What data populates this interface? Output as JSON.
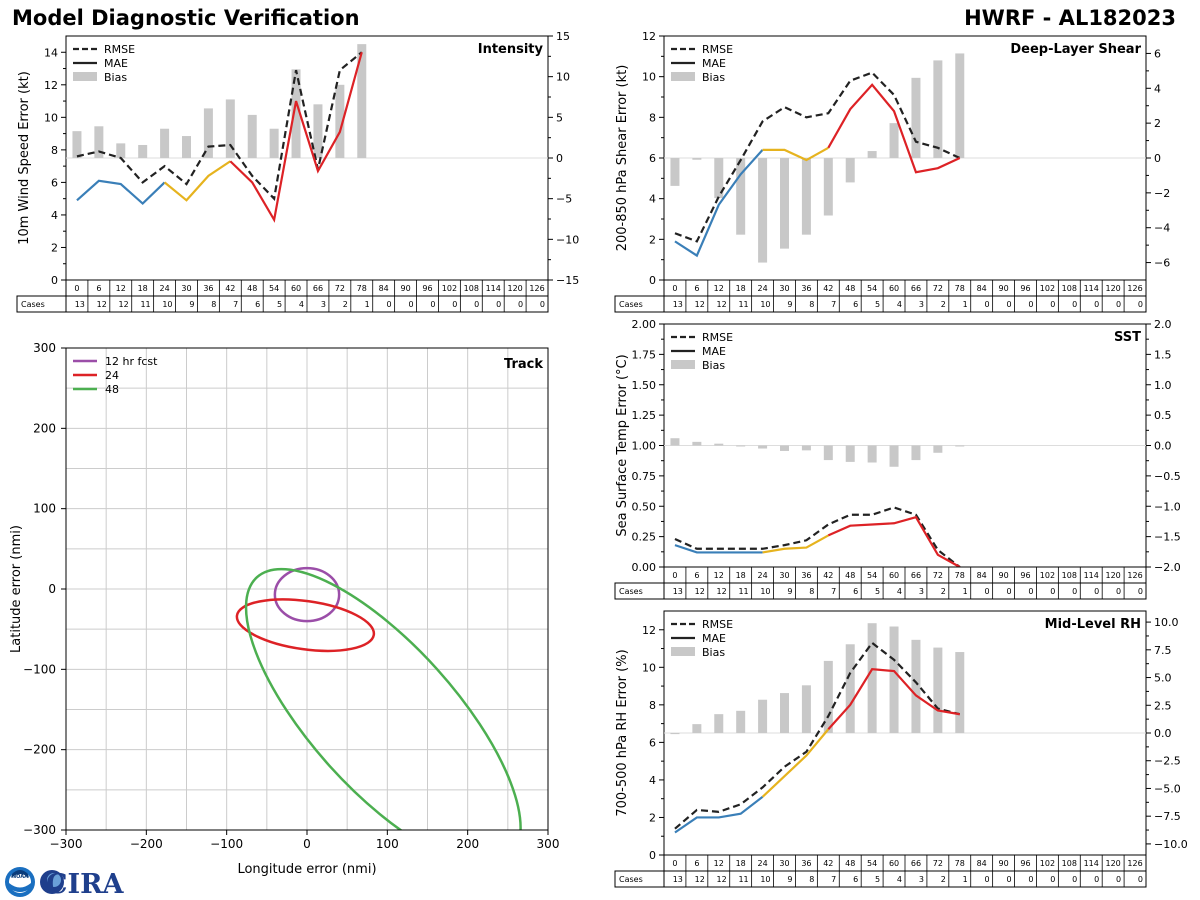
{
  "header": {
    "title_left": "Model Diagnostic Verification",
    "title_right": "HWRF - AL182023"
  },
  "logos": {
    "noaa_seal_text": "NOAA",
    "cira_text": "CIRA"
  },
  "colors": {
    "rmse": "#222222",
    "mae_early": "#3a7fb8",
    "mae_mid": "#e6b31e",
    "mae_late": "#dd2226",
    "bias": "#c8c8c8",
    "track_12": "#9b4ea8",
    "track_24": "#dd2226",
    "track_48": "#4caf50",
    "grid": "#cccccc"
  },
  "cases_row": {
    "label": "Cases",
    "hours": [
      "0",
      "6",
      "12",
      "18",
      "24",
      "30",
      "36",
      "42",
      "48",
      "54",
      "60",
      "66",
      "72",
      "78",
      "84",
      "90",
      "96",
      "102",
      "108",
      "114",
      "120",
      "126"
    ],
    "counts": [
      "13",
      "12",
      "12",
      "11",
      "10",
      "9",
      "8",
      "7",
      "6",
      "5",
      "4",
      "3",
      "2",
      "1",
      "0",
      "0",
      "0",
      "0",
      "0",
      "0",
      "0",
      "0"
    ]
  },
  "chart_data": [
    {
      "id": "intensity",
      "type": "line",
      "title": "Intensity",
      "ylabel": "10m Wind Speed Error (kt)",
      "ylim": [
        0,
        15
      ],
      "yticks": [
        "0",
        "2",
        "4",
        "6",
        "8",
        "10",
        "12",
        "14"
      ],
      "y2lim": [
        -15,
        15
      ],
      "y2ticks": [
        "−15",
        "−10",
        "−5",
        "0",
        "5",
        "10",
        "15"
      ],
      "legend": [
        "RMSE",
        "MAE",
        "Bias"
      ],
      "x": [
        0,
        6,
        12,
        18,
        24,
        30,
        36,
        42,
        48,
        54,
        60,
        66,
        72,
        78
      ],
      "rmse": [
        7.6,
        7.9,
        7.5,
        6.0,
        7.0,
        5.9,
        8.2,
        8.3,
        6.4,
        5.0,
        12.9,
        6.8,
        12.9,
        14.0
      ],
      "mae": [
        4.9,
        6.1,
        5.9,
        4.7,
        6.0,
        4.9,
        6.4,
        7.3,
        6.0,
        3.7,
        11.0,
        6.7,
        9.1,
        14.0
      ],
      "bias": [
        3.3,
        3.9,
        1.8,
        1.6,
        3.6,
        2.7,
        6.1,
        7.2,
        5.3,
        3.6,
        10.9,
        6.6,
        9.0,
        14.0
      ]
    },
    {
      "id": "shear",
      "type": "line",
      "title": "Deep-Layer Shear",
      "ylabel": "200-850 hPa Shear Error (kt)",
      "ylim": [
        0,
        12
      ],
      "yticks": [
        "0",
        "2",
        "4",
        "6",
        "8",
        "10",
        "12"
      ],
      "y2lim": [
        -7,
        7
      ],
      "y2ticks": [
        "−6",
        "−4",
        "−2",
        "0",
        "2",
        "4",
        "6"
      ],
      "legend": [
        "RMSE",
        "MAE",
        "Bias"
      ],
      "x": [
        0,
        6,
        12,
        18,
        24,
        30,
        36,
        42,
        48,
        54,
        60,
        66,
        72,
        78
      ],
      "rmse": [
        2.3,
        1.9,
        4.1,
        5.9,
        7.8,
        8.5,
        8.0,
        8.2,
        9.8,
        10.2,
        9.1,
        6.8,
        6.5,
        6.0
      ],
      "mae": [
        1.9,
        1.2,
        3.7,
        5.2,
        6.4,
        6.4,
        5.9,
        6.5,
        8.4,
        9.6,
        8.3,
        5.3,
        5.5,
        6.0
      ],
      "bias": [
        -1.6,
        -0.1,
        -2.3,
        -4.4,
        -6.0,
        -5.2,
        -4.4,
        -3.3,
        -1.4,
        0.4,
        2.0,
        4.6,
        5.6,
        6.0
      ]
    },
    {
      "id": "sst",
      "type": "line",
      "title": "SST",
      "ylabel": "Sea Surface Temp Error (°C)",
      "ylim": [
        0,
        2
      ],
      "yticks": [
        "0.00",
        "0.25",
        "0.50",
        "0.75",
        "1.00",
        "1.25",
        "1.50",
        "1.75",
        "2.00"
      ],
      "y2lim": [
        -2,
        2
      ],
      "y2ticks": [
        "−2.0",
        "−1.5",
        "−1.0",
        "−0.5",
        "0.0",
        "0.5",
        "1.0",
        "1.5",
        "2.0"
      ],
      "legend": [
        "RMSE",
        "MAE",
        "Bias"
      ],
      "x": [
        0,
        6,
        12,
        18,
        24,
        30,
        36,
        42,
        48,
        54,
        60,
        66,
        72,
        78
      ],
      "rmse": [
        0.23,
        0.15,
        0.15,
        0.15,
        0.15,
        0.18,
        0.22,
        0.35,
        0.43,
        0.43,
        0.49,
        0.43,
        0.14,
        0.0
      ],
      "mae": [
        0.18,
        0.12,
        0.12,
        0.12,
        0.12,
        0.15,
        0.16,
        0.26,
        0.34,
        0.35,
        0.36,
        0.41,
        0.1,
        0.0
      ],
      "bias": [
        0.12,
        0.06,
        0.03,
        -0.01,
        -0.05,
        -0.09,
        -0.08,
        -0.24,
        -0.27,
        -0.28,
        -0.35,
        -0.24,
        -0.12,
        0.0
      ]
    },
    {
      "id": "rh",
      "type": "line",
      "title": "Mid-Level RH",
      "ylabel": "700-500 hPa RH Error (%)",
      "ylim": [
        0,
        13
      ],
      "yticks": [
        "0",
        "2",
        "4",
        "6",
        "8",
        "10",
        "12"
      ],
      "y2lim": [
        -11,
        11
      ],
      "y2ticks": [
        "−10.0",
        "−7.5",
        "−5.0",
        "−2.5",
        "0.0",
        "2.5",
        "5.0",
        "7.5",
        "10.0"
      ],
      "legend": [
        "RMSE",
        "MAE",
        "Bias"
      ],
      "x": [
        0,
        6,
        12,
        18,
        24,
        30,
        36,
        42,
        48,
        54,
        60,
        66,
        72,
        78
      ],
      "rmse": [
        1.4,
        2.4,
        2.3,
        2.7,
        3.6,
        4.7,
        5.5,
        7.4,
        9.7,
        11.3,
        10.4,
        9.2,
        7.8,
        7.5
      ],
      "mae": [
        1.2,
        2.0,
        2.0,
        2.2,
        3.1,
        4.2,
        5.3,
        6.7,
        8.0,
        9.9,
        9.8,
        8.5,
        7.7,
        7.5
      ],
      "bias": [
        -0.1,
        0.8,
        1.7,
        2.0,
        3.0,
        3.6,
        4.3,
        6.5,
        8.0,
        9.9,
        9.6,
        8.4,
        7.7,
        7.3
      ]
    },
    {
      "id": "track",
      "type": "scatter",
      "title": "Track",
      "xlabel": "Longitude error (nmi)",
      "ylabel": "Latitude error (nmi)",
      "xlim": [
        -300,
        300
      ],
      "ylim": [
        -300,
        300
      ],
      "xticks": [
        "−300",
        "−200",
        "−100",
        "0",
        "100",
        "200",
        "300"
      ],
      "yticks": [
        "−300",
        "−200",
        "−100",
        "0",
        "100",
        "200",
        "300"
      ],
      "legend": [
        "12 hr fcst",
        "24",
        "48"
      ],
      "ellipses": [
        {
          "name": "12 hr fcst",
          "cx": 0,
          "cy": -7,
          "rx": 40,
          "ry": 33,
          "angle": 0
        },
        {
          "name": "24",
          "cx": -2,
          "cy": -45,
          "rx": 86,
          "ry": 30,
          "angle": -8
        },
        {
          "name": "48",
          "cx": 95,
          "cy": -160,
          "rx": 235,
          "ry": 90,
          "angle": -48
        }
      ]
    }
  ]
}
